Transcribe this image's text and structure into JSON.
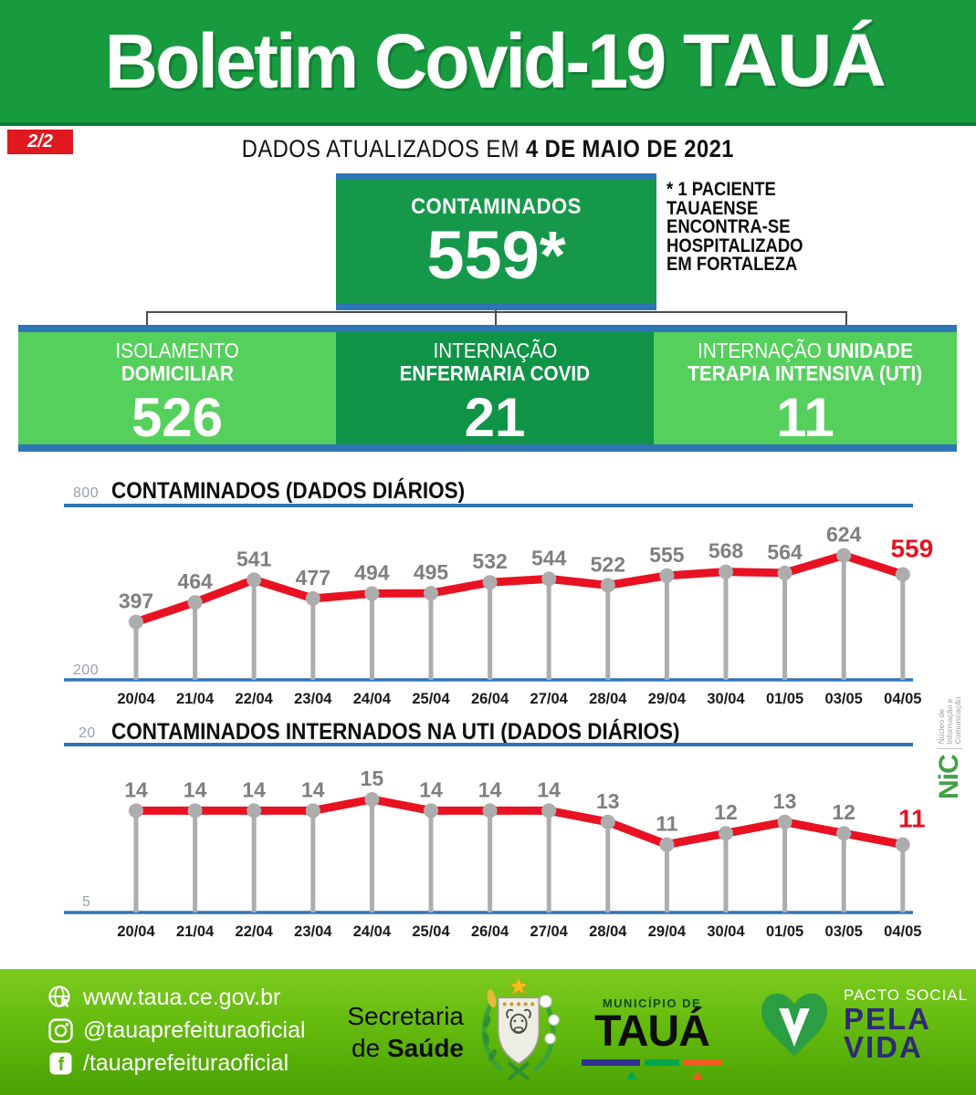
{
  "header": {
    "title": "Boletim Covid-19",
    "brand": "TAUÁ"
  },
  "page_badge": "2/2",
  "updated": {
    "prefix": "DADOS ATUALIZADOS EM ",
    "date": "4 DE MAIO DE 2021"
  },
  "highlight": {
    "label": "CONTAMINADOS",
    "value": "559*"
  },
  "note": "* 1 PACIENTE\nTAUAENSE\nENCONTRA-SE\nHOSPITALIZADO\nEM FORTALEZA",
  "stats": [
    {
      "l1": "ISOLAMENTO",
      "l1b": "",
      "l2": "DOMICILIAR",
      "value": "526",
      "variant": "light"
    },
    {
      "l1": "INTERNAÇÃO",
      "l1b": "",
      "l2": "ENFERMARIA COVID",
      "value": "21",
      "variant": "dark"
    },
    {
      "l1": "INTERNAÇÃO ",
      "l1b": "UNIDADE",
      "l2": "TERAPIA INTENSIVA (UTI)",
      "value": "11",
      "variant": "light"
    }
  ],
  "chart_data": [
    {
      "type": "line",
      "title": "CONTAMINADOS  (DADOS DIÁRIOS)",
      "categories": [
        "20/04",
        "21/04",
        "22/04",
        "23/04",
        "24/04",
        "25/04",
        "26/04",
        "27/04",
        "28/04",
        "29/04",
        "30/04",
        "01/05",
        "03/05",
        "04/05"
      ],
      "values": [
        397,
        464,
        541,
        477,
        494,
        495,
        532,
        544,
        522,
        555,
        568,
        564,
        624,
        559
      ],
      "ylim": [
        200,
        800
      ],
      "yticks": [
        "200",
        "800"
      ],
      "xlabel": "",
      "ylabel": "",
      "grid": "top-and-bottom-axis-lines-only",
      "legend": "none",
      "highlight_last": true
    },
    {
      "type": "line",
      "title": "CONTAMINADOS INTERNADOS NA UTI  (DADOS DIÁRIOS)",
      "categories": [
        "20/04",
        "21/04",
        "22/04",
        "23/04",
        "24/04",
        "25/04",
        "26/04",
        "27/04",
        "28/04",
        "29/04",
        "30/04",
        "01/05",
        "03/05",
        "04/05"
      ],
      "values": [
        14,
        14,
        14,
        14,
        15,
        14,
        14,
        14,
        13,
        11,
        12,
        13,
        12,
        11
      ],
      "ylim": [
        5,
        20
      ],
      "yticks": [
        "5",
        "20"
      ],
      "xlabel": "",
      "ylabel": "",
      "grid": "top-and-bottom-axis-lines-only",
      "legend": "none",
      "highlight_last": true
    }
  ],
  "nic": {
    "name": "NiC",
    "caption": "Núcleo de\nInformação e\nComunicação"
  },
  "footer": {
    "links": [
      {
        "icon": "globe-icon",
        "text": "www.taua.ce.gov.br"
      },
      {
        "icon": "instagram-icon",
        "text": "@tauaprefeituraoficial"
      },
      {
        "icon": "facebook-icon",
        "text": "/tauaprefeituraoficial"
      }
    ],
    "secretaria": {
      "line1": "Secretaria",
      "line2_prefix": "de ",
      "line2_bold": "Saúde"
    },
    "municipio": {
      "kicker": "MUNICÍPIO DE",
      "name": "TAUÁ"
    },
    "pacto": {
      "kicker": "PACTO SOCIAL",
      "word1": "PELA",
      "word2": "VIDA"
    }
  },
  "colors": {
    "header_green": "#189b3f",
    "dark_green": "#0f9447",
    "light_green": "#55d05c",
    "accent_blue": "#2e75b6",
    "line_red": "#e81222",
    "badge_red": "#e0181f",
    "stem_gray": "#adadad",
    "value_label_gray": "#7f7f7f",
    "footer_green_top": "#7ccb20",
    "footer_green_bottom": "#4aa203",
    "pacto_navy": "#2e2a78"
  }
}
